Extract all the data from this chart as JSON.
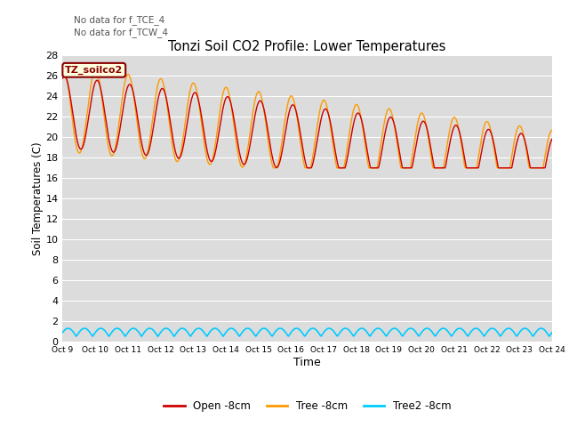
{
  "title": "Tonzi Soil CO2 Profile: Lower Temperatures",
  "subtitle1": "No data for f_TCE_4",
  "subtitle2": "No data for f_TCW_4",
  "ylabel": "Soil Temperatures (C)",
  "xlabel": "Time",
  "watermark": "TZ_soilco2",
  "ylim": [
    0,
    28
  ],
  "yticks": [
    0,
    2,
    4,
    6,
    8,
    10,
    12,
    14,
    16,
    18,
    20,
    22,
    24,
    26,
    28
  ],
  "xtick_labels": [
    "Oct 9",
    "Oct 10",
    "Oct 11",
    "Oct 12",
    "Oct 13",
    "Oct 14",
    "Oct 15",
    "Oct 16",
    "Oct 17",
    "Oct 18",
    "Oct 19",
    "Oct 20",
    "Oct 21",
    "Oct 22",
    "Oct 23",
    "Oct 24"
  ],
  "color_open": "#cc0000",
  "color_tree": "#ff9900",
  "color_tree2": "#00ccff",
  "legend_labels": [
    "Open -8cm",
    "Tree -8cm",
    "Tree2 -8cm"
  ],
  "bg_color": "#dcdcdc",
  "fig_color": "#ffffff"
}
